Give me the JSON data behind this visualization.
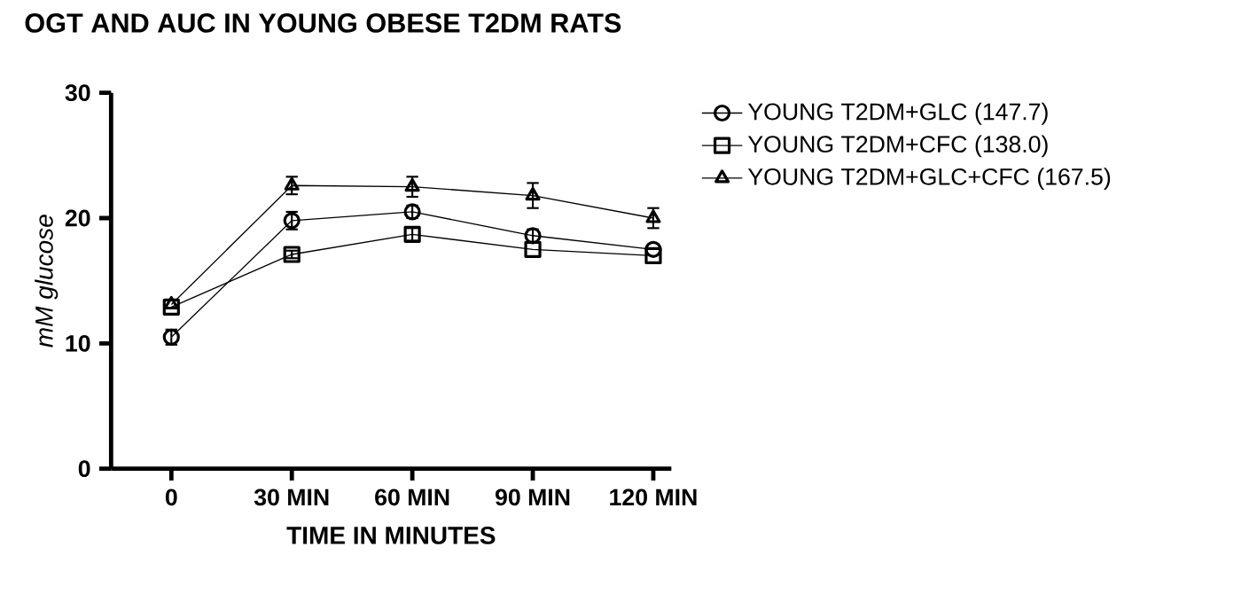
{
  "chart_data": {
    "type": "line",
    "title": "OGT AND AUC IN YOUNG OBESE T2DM RATS",
    "xlabel": "TIME IN MINUTES",
    "ylabel": "*mM glucose*",
    "categories": [
      "0",
      "30 MIN",
      "60 MIN",
      "90 MIN",
      "120 MIN"
    ],
    "ylim": [
      0,
      30
    ],
    "yticks": [
      0,
      10,
      20,
      30
    ],
    "legend": "top right",
    "series": [
      {
        "name": "YOUNG T2DM+GLC (147.7)",
        "color": "#000000",
        "marker": "circle",
        "values": [
          10.5,
          19.8,
          20.5,
          18.6,
          17.5
        ],
        "errors": [
          0.6,
          0.7,
          0.5,
          0.5,
          null
        ]
      },
      {
        "name": "YOUNG T2DM+CFC (138.0)",
        "color": "#000000",
        "marker": "square",
        "values": [
          12.9,
          17.1,
          18.7,
          17.5,
          17.0
        ],
        "errors": [
          null,
          0.3,
          0.5,
          null,
          null
        ]
      },
      {
        "name": "YOUNG T2DM+GLC+CFC (167.5)",
        "color": "#000000",
        "marker": "triangle",
        "values": [
          13.1,
          22.6,
          22.5,
          21.8,
          20.0
        ],
        "errors": [
          null,
          0.7,
          0.8,
          1.0,
          0.8
        ]
      }
    ]
  }
}
